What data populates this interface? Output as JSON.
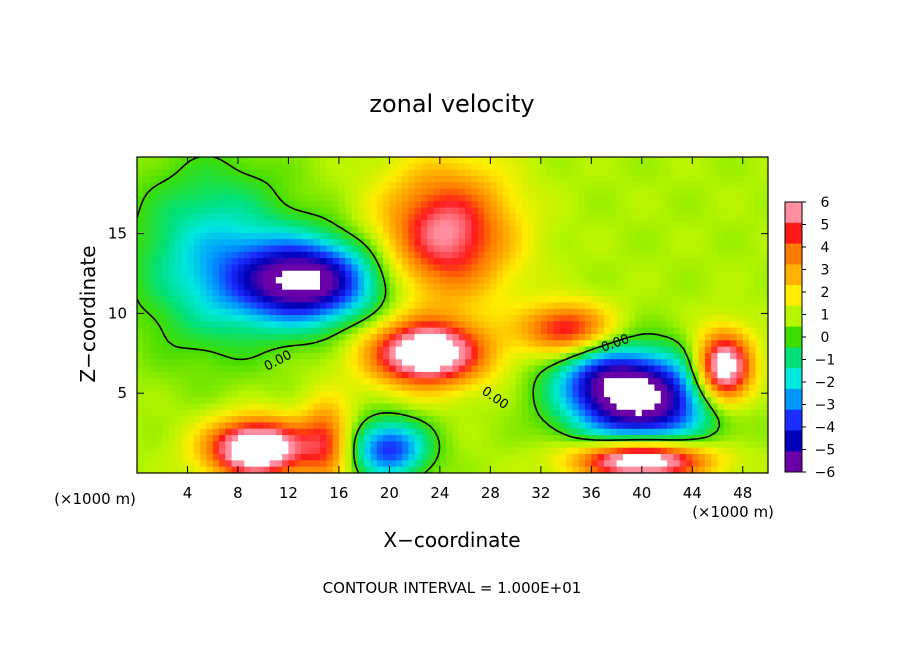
{
  "chart_data": {
    "type": "heatmap",
    "title": "zonal velocity",
    "xlabel": "X−coordinate",
    "ylabel": "Z−coordinate",
    "x_unit_left": "(×1000 m)",
    "x_unit_right": "(×1000 m)",
    "footer": "CONTOUR INTERVAL = 1.000E+01",
    "contour_label": "0.00",
    "xlim": [
      0,
      50
    ],
    "ylim": [
      0,
      19.8
    ],
    "x_ticks": [
      "4",
      "8",
      "12",
      "16",
      "20",
      "24",
      "28",
      "32",
      "36",
      "40",
      "44",
      "48"
    ],
    "x_tick_values": [
      4,
      8,
      12,
      16,
      20,
      24,
      28,
      32,
      36,
      40,
      44,
      48
    ],
    "y_ticks": [
      "5",
      "10",
      "15"
    ],
    "y_tick_values": [
      5,
      10,
      15
    ],
    "colorbar": {
      "labels": [
        "6",
        "5",
        "4",
        "3",
        "2",
        "1",
        "0",
        "−1",
        "−2",
        "−3",
        "−4",
        "−5",
        "−6"
      ],
      "colors": [
        "#ff8fa0",
        "#ff1a1a",
        "#ff7a00",
        "#ffb000",
        "#ffee00",
        "#b8f500",
        "#3fdc00",
        "#00e07a",
        "#00e8e0",
        "#0096ff",
        "#1a2fff",
        "#0000b8",
        "#6a00a8"
      ],
      "range": [
        -6,
        6
      ]
    },
    "features": [
      {
        "kind": "min",
        "x": 13.5,
        "z": 12.0,
        "rx": 5.5,
        "rz": 2.6,
        "amp": -7.5
      },
      {
        "kind": "min",
        "x": 6.0,
        "z": 13.5,
        "rx": 6.0,
        "rz": 5.5,
        "amp": -3.0
      },
      {
        "kind": "min",
        "x": 20.0,
        "z": 1.5,
        "rx": 3.0,
        "rz": 1.8,
        "amp": -5.0
      },
      {
        "kind": "min",
        "x": 40.0,
        "z": 4.5,
        "rx": 5.5,
        "rz": 2.8,
        "amp": -7.5
      },
      {
        "kind": "min",
        "x": 37.0,
        "z": 6.0,
        "rx": 4.0,
        "rz": 2.0,
        "amp": -3.0
      },
      {
        "kind": "max",
        "x": 24.5,
        "z": 15.0,
        "rx": 5.0,
        "rz": 4.0,
        "amp": 5.2
      },
      {
        "kind": "max",
        "x": 23.0,
        "z": 7.5,
        "rx": 4.5,
        "rz": 2.0,
        "amp": 7.5
      },
      {
        "kind": "max",
        "x": 34.0,
        "z": 9.0,
        "rx": 3.5,
        "rz": 1.6,
        "amp": 4.5
      },
      {
        "kind": "max",
        "x": 9.5,
        "z": 1.5,
        "rx": 3.8,
        "rz": 1.8,
        "amp": 8.0
      },
      {
        "kind": "max",
        "x": 40.0,
        "z": 0.8,
        "rx": 5.0,
        "rz": 1.2,
        "amp": 8.0
      },
      {
        "kind": "max",
        "x": 46.5,
        "z": 6.5,
        "rx": 2.2,
        "rz": 2.2,
        "amp": 7.5
      },
      {
        "kind": "max",
        "x": 15.0,
        "z": 2.0,
        "rx": 2.0,
        "rz": 2.5,
        "amp": 3.5
      }
    ]
  }
}
